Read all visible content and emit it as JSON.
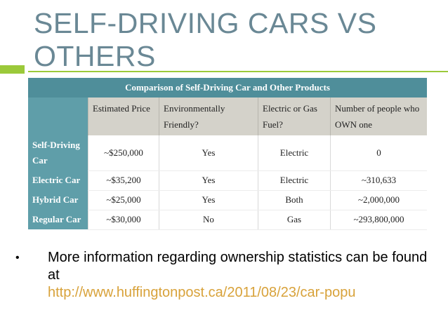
{
  "slide": {
    "title": "SELF-DRIVING CARS VS OTHERS"
  },
  "table": {
    "caption": "Comparison of Self-Driving Car and Other Products",
    "columns": [
      "Estimated Price",
      "Environmentally Friendly?",
      "Electric or Gas Fuel?",
      "Number of people who OWN one"
    ],
    "rows": [
      {
        "label": "Self-Driving Car",
        "cells": [
          "~$250,000",
          "Yes",
          "Electric",
          "0"
        ]
      },
      {
        "label": "Electric Car",
        "cells": [
          "~$35,200",
          "Yes",
          "Electric",
          "~310,633"
        ]
      },
      {
        "label": "Hybrid Car",
        "cells": [
          "~$25,000",
          "Yes",
          "Both",
          "~2,000,000"
        ]
      },
      {
        "label": "Regular Car",
        "cells": [
          "~$30,000",
          "No",
          "Gas",
          "~293,800,000"
        ]
      }
    ]
  },
  "bullet": {
    "marker": "•",
    "text": "More information regarding ownership statistics can be found at",
    "link": "http://www.huffingtonpost.ca/2011/08/23/car-popu"
  },
  "colors": {
    "title": "#6a8895",
    "accent": "#9bc93a",
    "table_header": "#5f9ea9",
    "link": "#d8a23a"
  }
}
